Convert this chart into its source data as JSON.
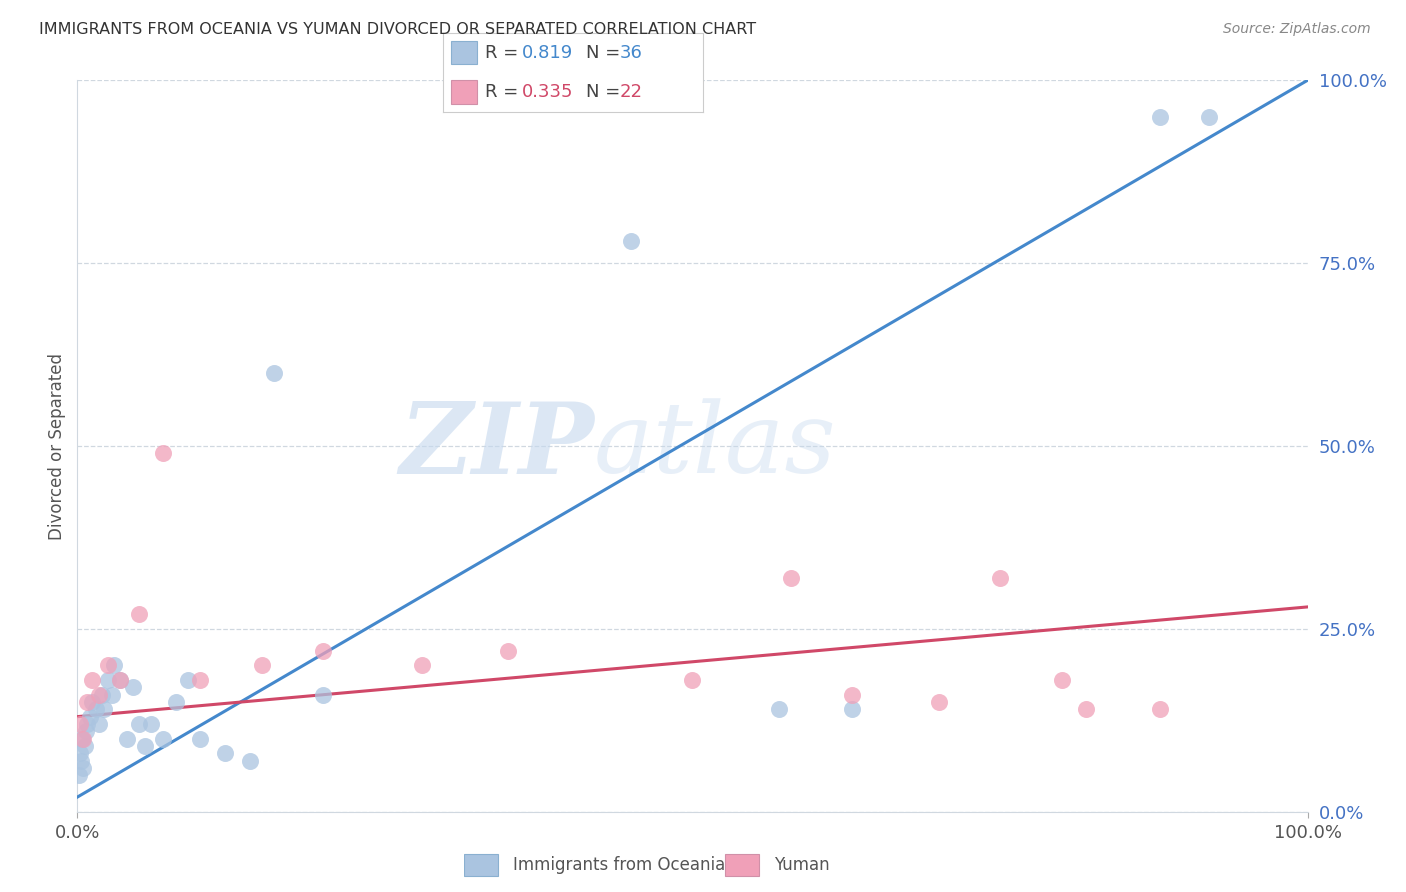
{
  "title": "IMMIGRANTS FROM OCEANIA VS YUMAN DIVORCED OR SEPARATED CORRELATION CHART",
  "source": "Source: ZipAtlas.com",
  "legend1_label": "Immigrants from Oceania",
  "legend2_label": "Yuman",
  "ylabel": "Divorced or Separated",
  "r1": "0.819",
  "n1": "36",
  "r2": "0.335",
  "n2": "22",
  "blue_scatter_color": "#aac4e0",
  "pink_scatter_color": "#f0a0b8",
  "blue_line_color": "#4488cc",
  "pink_line_color": "#d04868",
  "blue_points_x": [
    0.1,
    0.2,
    0.3,
    0.4,
    0.5,
    0.6,
    0.7,
    0.8,
    1.0,
    1.2,
    1.5,
    1.8,
    2.0,
    2.2,
    2.5,
    2.8,
    3.0,
    3.5,
    4.0,
    4.5,
    5.0,
    5.5,
    6.0,
    7.0,
    8.0,
    9.0,
    10.0,
    12.0,
    14.0,
    16.0,
    20.0,
    45.0,
    57.0,
    63.0,
    88.0,
    92.0
  ],
  "blue_points_y": [
    5.0,
    8.0,
    7.0,
    10.0,
    6.0,
    9.0,
    11.0,
    12.0,
    13.0,
    15.0,
    14.0,
    12.0,
    16.0,
    14.0,
    18.0,
    16.0,
    20.0,
    18.0,
    10.0,
    17.0,
    12.0,
    9.0,
    12.0,
    10.0,
    15.0,
    18.0,
    10.0,
    8.0,
    7.0,
    60.0,
    16.0,
    78.0,
    14.0,
    14.0,
    95.0,
    95.0
  ],
  "pink_points_x": [
    0.2,
    0.5,
    0.8,
    1.2,
    1.8,
    2.5,
    3.5,
    5.0,
    7.0,
    10.0,
    15.0,
    20.0,
    28.0,
    35.0,
    50.0,
    58.0,
    63.0,
    70.0,
    75.0,
    80.0,
    82.0,
    88.0
  ],
  "pink_points_y": [
    12.0,
    10.0,
    15.0,
    18.0,
    16.0,
    20.0,
    18.0,
    27.0,
    49.0,
    18.0,
    20.0,
    22.0,
    20.0,
    22.0,
    18.0,
    32.0,
    16.0,
    15.0,
    32.0,
    18.0,
    14.0,
    14.0
  ],
  "blue_line_x": [
    0.0,
    100.0
  ],
  "blue_line_y": [
    2.0,
    100.0
  ],
  "pink_line_x": [
    0.0,
    100.0
  ],
  "pink_line_y": [
    13.0,
    28.0
  ],
  "xlim": [
    0.0,
    100.0
  ],
  "ylim": [
    0.0,
    100.0
  ],
  "yticks": [
    0.0,
    25.0,
    50.0,
    75.0,
    100.0
  ],
  "ytick_labels": [
    "0.0%",
    "25.0%",
    "50.0%",
    "75.0%",
    "100.0%"
  ],
  "xtick_labels": [
    "0.0%",
    "100.0%"
  ],
  "watermark_zip": "ZIP",
  "watermark_atlas": "atlas",
  "tick_color": "#4472c4",
  "axis_label_color": "#555555",
  "title_color": "#333333",
  "source_color": "#888888",
  "grid_color": "#d0d8e0",
  "background": "#ffffff"
}
